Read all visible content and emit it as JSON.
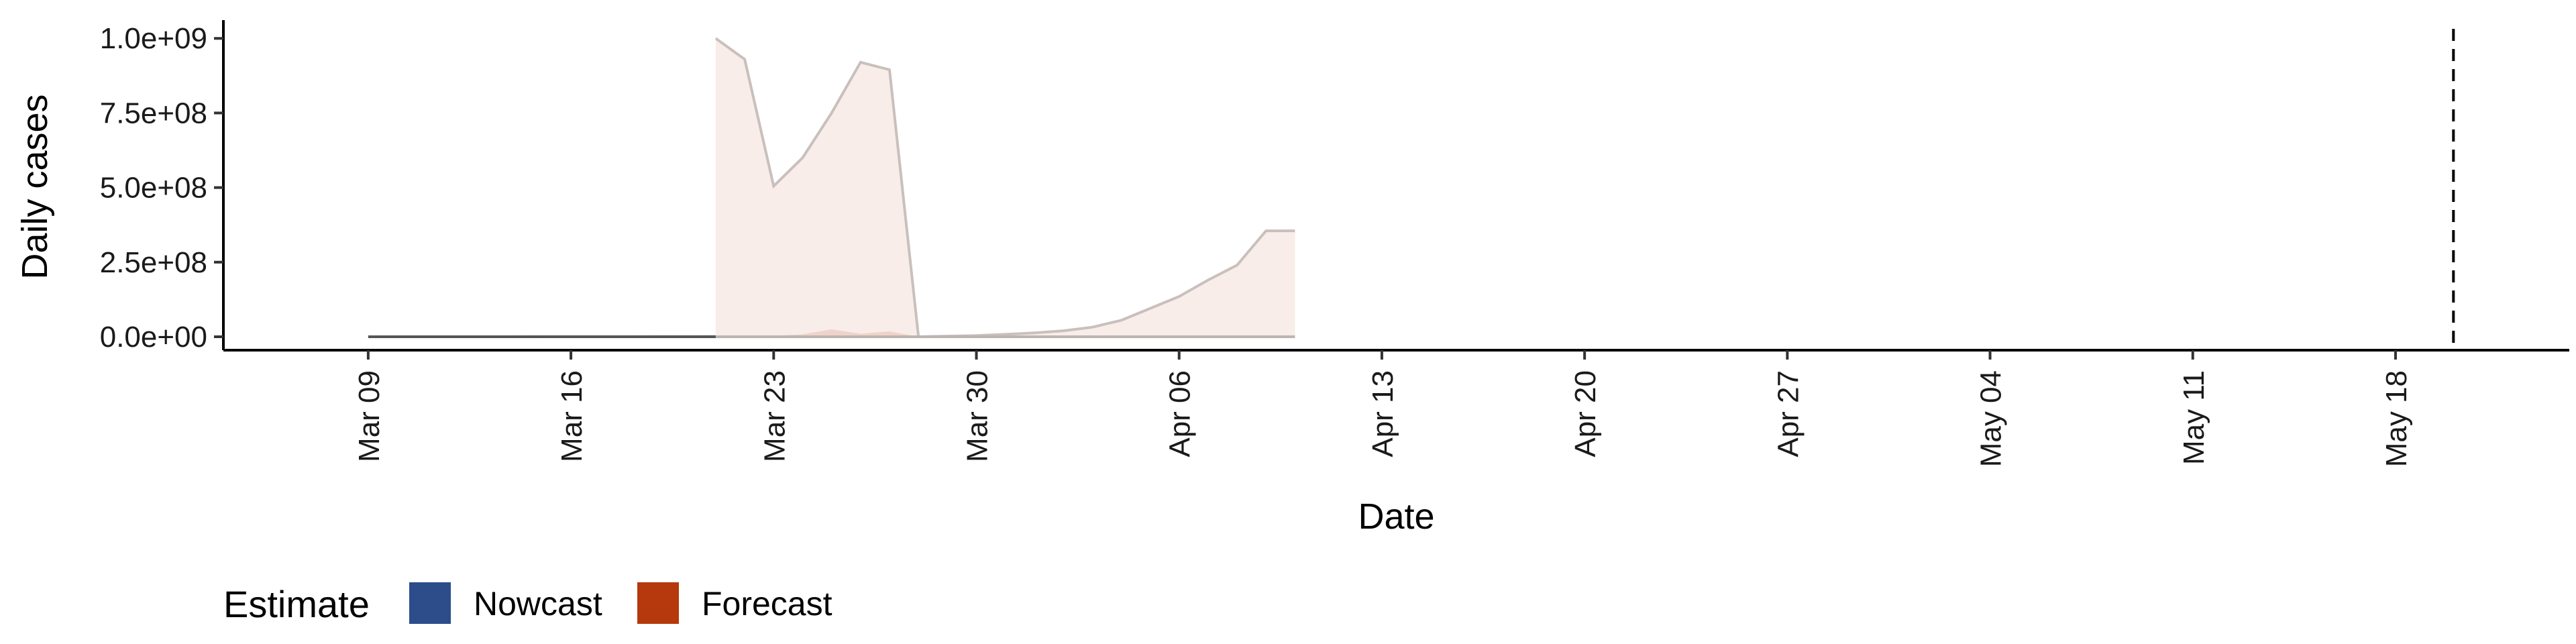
{
  "chart_data": {
    "type": "area",
    "title": "",
    "xlabel": "Date",
    "ylabel": "Daily cases",
    "x_ticks": [
      "Mar 09",
      "Mar 16",
      "Mar 23",
      "Mar 30",
      "Apr 06",
      "Apr 13",
      "Apr 20",
      "Apr 27",
      "May 04",
      "May 11",
      "May 18"
    ],
    "y_ticks": [
      "0.0e+00",
      "2.5e+08",
      "5.0e+08",
      "7.5e+08",
      "1.0e+09"
    ],
    "xlim": [
      "2020-03-04",
      "2020-05-24"
    ],
    "ylim": [
      -45000000,
      1050000000
    ],
    "vline_date": "2020-05-20",
    "grid": false,
    "legend": {
      "title": "Estimate",
      "position": "bottom-left",
      "entries": [
        {
          "label": "Nowcast",
          "color": "#2d4d8a"
        },
        {
          "label": "Forecast",
          "color": "#b5390c"
        }
      ]
    },
    "series": [
      {
        "name": "Nowcast",
        "color": "#2d4d8a",
        "x": [
          "2020-03-09",
          "2020-03-10",
          "2020-03-11",
          "2020-03-12",
          "2020-03-13",
          "2020-03-14",
          "2020-03-15",
          "2020-03-16",
          "2020-03-17",
          "2020-03-18",
          "2020-03-19",
          "2020-03-20",
          "2020-03-21"
        ],
        "upper": [
          100000,
          150000,
          200000,
          250000,
          300000,
          350000,
          400000,
          450000,
          500000,
          600000,
          700000,
          900000,
          1100000
        ],
        "lower": [
          0,
          0,
          0,
          0,
          0,
          0,
          0,
          0,
          0,
          0,
          0,
          0,
          0
        ]
      },
      {
        "name": "Forecast",
        "color": "#b5390c",
        "x": [
          "2020-03-21",
          "2020-03-22",
          "2020-03-23",
          "2020-03-24",
          "2020-03-25",
          "2020-03-26",
          "2020-03-27",
          "2020-03-28",
          "2020-03-29",
          "2020-03-30",
          "2020-03-31",
          "2020-04-01",
          "2020-04-02",
          "2020-04-03",
          "2020-04-04",
          "2020-04-05",
          "2020-04-06",
          "2020-04-07",
          "2020-04-08",
          "2020-04-09",
          "2020-04-10"
        ],
        "upper": [
          1000000000,
          930000000,
          505000000,
          600000000,
          750000000,
          920000000,
          895000000,
          0,
          2000000,
          4000000,
          8000000,
          13000000,
          20000000,
          32000000,
          55000000,
          95000000,
          135000000,
          190000000,
          240000000,
          355000000,
          355000000
        ],
        "inner_upper": [
          2000000,
          3000000,
          3000000,
          8000000,
          25000000,
          10000000,
          18000000,
          0,
          0,
          0,
          0,
          0,
          0,
          0,
          0,
          0,
          0,
          0,
          0,
          0,
          0
        ],
        "lower": [
          0,
          0,
          0,
          0,
          0,
          0,
          0,
          0,
          0,
          0,
          0,
          0,
          0,
          0,
          0,
          0,
          0,
          0,
          0,
          0,
          0
        ]
      }
    ]
  }
}
